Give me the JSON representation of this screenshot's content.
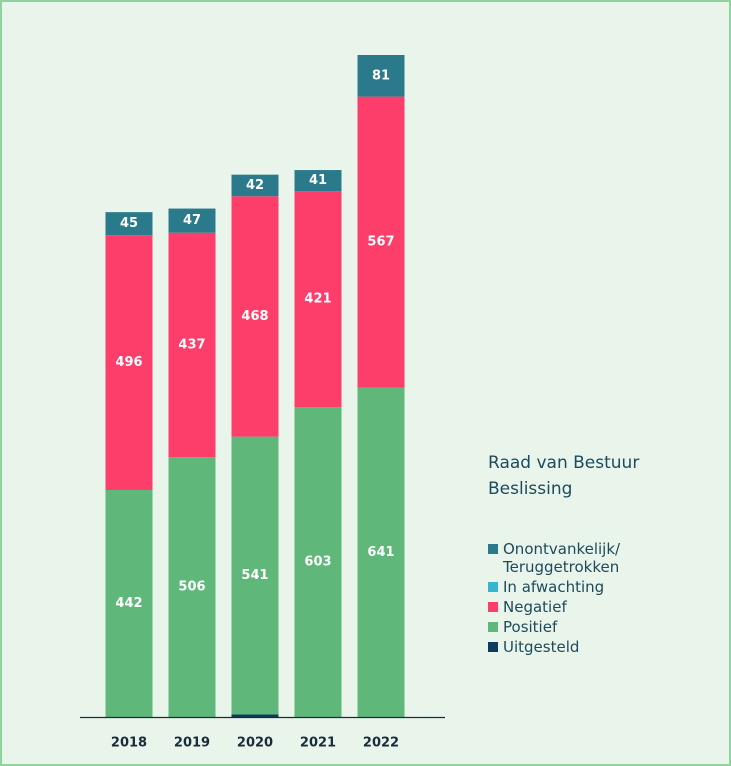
{
  "chart_data": {
    "type": "stacked_bar",
    "categories": [
      "2018",
      "2019",
      "2020",
      "2021",
      "2022"
    ],
    "legend_title": "Raad van Bestuur Beslissing",
    "series": [
      {
        "name": "Uitgesteld",
        "color": "#0d3b5c",
        "values": [
          null,
          null,
          5,
          null,
          null
        ]
      },
      {
        "name": "Positief",
        "color": "#5fb87a",
        "values": [
          442,
          506,
          541,
          603,
          641
        ]
      },
      {
        "name": "Negatief",
        "color": "#fd3d6a",
        "values": [
          496,
          437,
          468,
          421,
          567
        ]
      },
      {
        "name": "In afwachting",
        "color": "#38b3d0",
        "values": [
          null,
          null,
          null,
          null,
          null
        ]
      },
      {
        "name": "Onontvankelijk/ Teruggetrokken",
        "color": "#2a7a8c",
        "values": [
          45,
          47,
          42,
          41,
          81
        ]
      }
    ],
    "legend_order": [
      4,
      3,
      2,
      1,
      0
    ]
  }
}
